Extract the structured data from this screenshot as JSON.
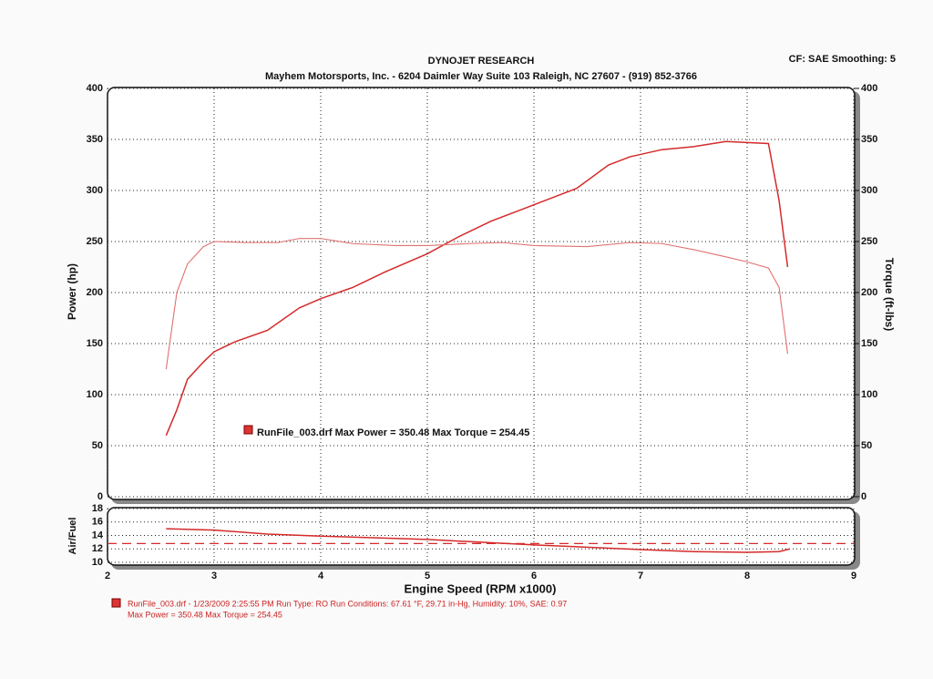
{
  "chart_data": [
    {
      "type": "line",
      "title": "DYNOJET RESEARCH",
      "subtitle": "Mayhem Motorsports, Inc. - 6204 Daimler Way Suite 103  Raleigh, NC  27607 - (919) 852-3766",
      "settings_text": "CF: SAE  Smoothing: 5",
      "y_label": "Power (hp)",
      "y2_label": "Torque (ft-lbs)",
      "annotation": "RunFile_003.drf Max Power = 350.48     Max Torque = 254.45",
      "xlim": [
        2,
        9
      ],
      "xticks": [
        2,
        3,
        4,
        5,
        6,
        7,
        8,
        9
      ],
      "ylim": [
        0,
        400
      ],
      "yticks": [
        0,
        50,
        100,
        150,
        200,
        250,
        300,
        350,
        400
      ],
      "y2lim": [
        0,
        400
      ],
      "y2ticks": [
        0,
        50,
        100,
        150,
        200,
        250,
        300,
        350,
        400
      ],
      "grid": true,
      "series": [
        {
          "color": "#d42a2a",
          "x": [
            2.55,
            2.65,
            2.75,
            2.9,
            3.0,
            3.2,
            3.5,
            3.8,
            4.0,
            4.3,
            4.6,
            5.0,
            5.3,
            5.6,
            5.85,
            6.1,
            6.4,
            6.7,
            6.9,
            7.2,
            7.5,
            7.8,
            8.0,
            8.2,
            8.3,
            8.38
          ],
          "values": [
            60,
            85,
            115,
            132,
            142,
            152,
            163,
            185,
            194,
            205,
            220,
            238,
            255,
            270,
            280,
            290,
            302,
            325,
            333,
            340,
            343,
            348,
            347,
            346,
            290,
            225
          ]
        },
        {
          "color": "#e07070",
          "axis": "y2",
          "x": [
            2.55,
            2.65,
            2.75,
            2.9,
            3.0,
            3.3,
            3.6,
            3.8,
            4.0,
            4.3,
            4.7,
            5.0,
            5.4,
            5.7,
            6.0,
            6.5,
            6.9,
            7.2,
            7.5,
            7.8,
            8.0,
            8.2,
            8.3,
            8.38
          ],
          "values": [
            125,
            200,
            228,
            245,
            250,
            249,
            249,
            253,
            253,
            248,
            246,
            246,
            248,
            249,
            246,
            245,
            249,
            248,
            242,
            235,
            230,
            224,
            205,
            140
          ]
        }
      ]
    },
    {
      "type": "line",
      "y_label": "Air/Fuel",
      "x_label": "Engine Speed (RPM x1000)",
      "xlim": [
        2,
        9
      ],
      "xticks": [
        2,
        3,
        4,
        5,
        6,
        7,
        8,
        9
      ],
      "ylim": [
        10,
        18
      ],
      "yticks": [
        10,
        12,
        14,
        16,
        18
      ],
      "grid": true,
      "reference_line": 12.8,
      "reference_color": "#d42a2a",
      "series": [
        {
          "color": "#d42a2a",
          "x": [
            2.55,
            3.0,
            3.5,
            4.0,
            5.0,
            6.0,
            7.0,
            7.5,
            8.0,
            8.3,
            8.4
          ],
          "values": [
            15.0,
            14.8,
            14.2,
            13.9,
            13.4,
            12.6,
            11.9,
            11.6,
            11.5,
            11.6,
            12.0
          ]
        }
      ],
      "footer": [
        "RunFile_003.drf - 1/23/2009 2:25:55 PM  Run Type: RO  Run Conditions: 67.61 °F, 29.71 in-Hg,  Humidity:  10%, SAE: 0.97",
        "Max Power = 350.48  Max Torque = 254.45"
      ]
    }
  ]
}
